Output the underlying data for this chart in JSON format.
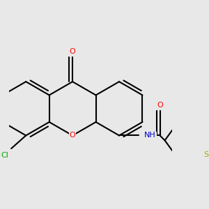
{
  "background_color": "#e8e8e8",
  "bond_color": "#000000",
  "atom_colors": {
    "O": "#ff0000",
    "N": "#0000cc",
    "S": "#aaaa00",
    "Cl": "#00aa00",
    "C": "#000000"
  },
  "figsize": [
    3.0,
    3.0
  ],
  "dpi": 100,
  "bond_lw": 1.5,
  "font_size": 8.0
}
